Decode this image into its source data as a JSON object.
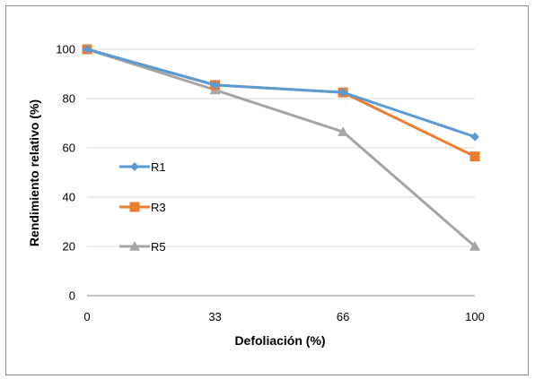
{
  "chart_data": {
    "type": "line",
    "xlabel": "Defoliación (%)",
    "ylabel": "Rendimiento relativo (%)",
    "x": [
      0,
      33,
      66,
      100
    ],
    "x_tick_labels": [
      "0",
      "33",
      "66",
      "100"
    ],
    "y_tick_labels": [
      "0",
      "20",
      "40",
      "60",
      "80",
      "100"
    ],
    "ylim": [
      0,
      100
    ],
    "grid": "horizontal",
    "legend_position": "left-inside",
    "series": [
      {
        "name": "R1",
        "values": [
          100,
          85.5,
          82.5,
          64.5
        ],
        "color": "#5B9BD5",
        "marker": "diamond"
      },
      {
        "name": "R3",
        "values": [
          100,
          85.5,
          82.5,
          56.5
        ],
        "color": "#ED7D31",
        "marker": "square"
      },
      {
        "name": "R5",
        "values": [
          100,
          83.5,
          66.5,
          20
        ],
        "color": "#A5A5A5",
        "marker": "triangle"
      }
    ]
  }
}
